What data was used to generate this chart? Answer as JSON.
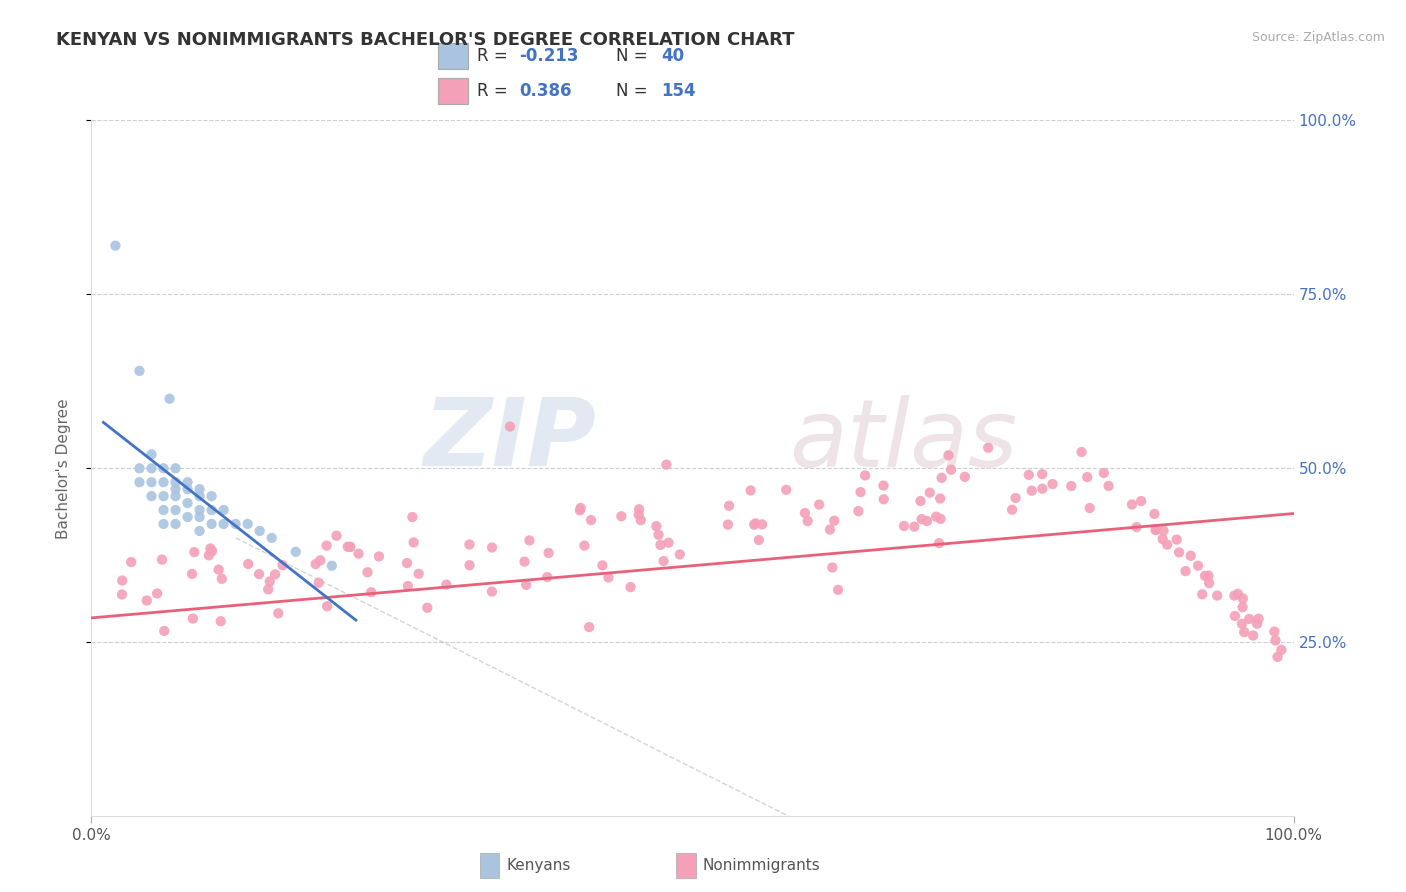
{
  "title": "KENYAN VS NONIMMIGRANTS BACHELOR'S DEGREE CORRELATION CHART",
  "source_text": "Source: ZipAtlas.com",
  "ylabel": "Bachelor's Degree",
  "color_kenyan": "#aac4e0",
  "color_nonimmigrant": "#f4a0b8",
  "color_line_kenyan": "#4472c4",
  "color_line_nonimmigrant": "#e8607a",
  "color_diagonal": "#b8b8b8",
  "color_grid": "#d0d0d0",
  "color_right_ticks": "#4472c4",
  "title_fontsize": 13,
  "label_fontsize": 11,
  "tick_fontsize": 11,
  "legend_fontsize": 12
}
